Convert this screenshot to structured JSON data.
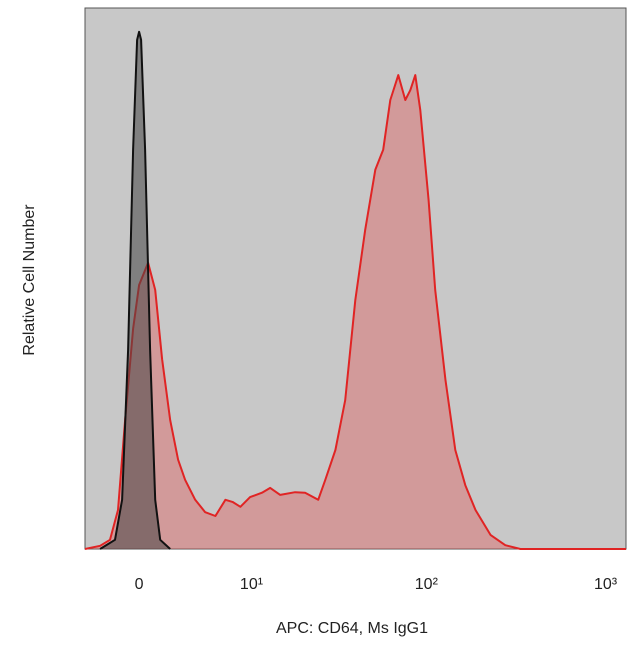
{
  "chart_data": {
    "type": "histogram-overlay",
    "x_label": "APC: CD64, Ms IgG1",
    "y_label": "Relative Cell Number",
    "xscale": "biexponential",
    "xlim": [
      -3.76,
      1300
    ],
    "ylim": [
      0,
      100
    ],
    "xticks": [
      0,
      {
        "value": 10,
        "label": "10¹"
      },
      {
        "value": 100,
        "label": "10²"
      },
      {
        "value": 1000,
        "label": "10³"
      }
    ],
    "background": "#c8c8c8",
    "series": [
      {
        "color": "#e02424",
        "fill": "rgba(225,90,90,0.42)",
        "x": [
          -3.76,
          -2.61,
          -1.91,
          -1.37,
          -0.905,
          -0.386,
          0,
          0.58,
          1.04,
          1.5,
          2.05,
          2.61,
          3.13,
          3.92,
          4.77,
          5.72,
          6.75,
          7.54,
          8.5,
          9.8,
          11.6,
          13.0,
          14.9,
          18.2,
          20.8,
          24.7,
          27.1,
          30.9,
          35.1,
          40.0,
          45.5,
          51.8,
          57.4,
          62.9,
          69.7,
          76.3,
          81.4,
          86.8,
          92.5,
          103,
          112,
          128,
          145,
          165,
          188,
          228,
          276,
          335,
          1300
        ],
        "values": [
          0,
          0.6,
          1.7,
          7.2,
          23.8,
          40.7,
          48.8,
          52.9,
          47.9,
          35.1,
          23.8,
          16.5,
          12.8,
          9.1,
          6.8,
          6.1,
          9.1,
          8.7,
          7.8,
          9.6,
          10.4,
          11.3,
          10.0,
          10.5,
          10.4,
          9.1,
          12.8,
          18.3,
          27.5,
          46.0,
          59.0,
          70.1,
          73.8,
          83.0,
          87.6,
          83.0,
          84.8,
          87.6,
          81.1,
          64.5,
          47.9,
          31.2,
          18.3,
          11.8,
          7.2,
          2.6,
          0.7,
          0,
          0
        ]
      },
      {
        "color": "#111111",
        "fill": "rgba(70,70,70,0.55)",
        "x": [
          -2.61,
          -1.57,
          -1.1,
          -0.71,
          -0.386,
          -0.129,
          0,
          0.129,
          0.386,
          0.71,
          1.04,
          1.37,
          2.05
        ],
        "values": [
          0,
          1.7,
          9.1,
          36.8,
          73.8,
          94.1,
          95.6,
          94.1,
          73.8,
          36.8,
          9.1,
          1.7,
          0
        ]
      }
    ]
  }
}
